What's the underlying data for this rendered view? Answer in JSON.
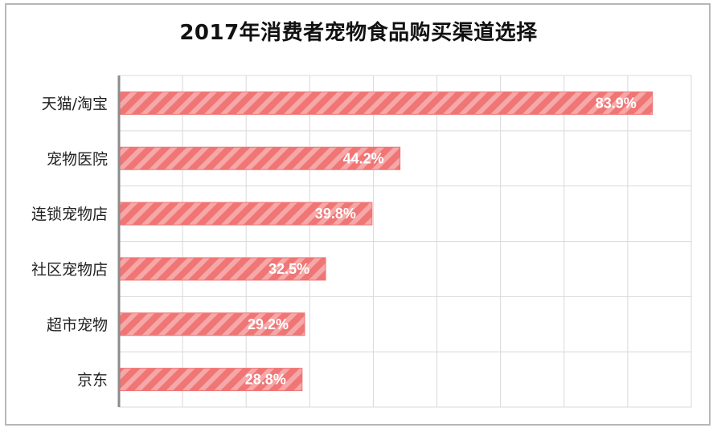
{
  "chart_data": {
    "type": "bar",
    "orientation": "horizontal",
    "title": "2017年消费者宠物食品购买渠道选择",
    "categories": [
      "天猫/淘宝",
      "宠物医院",
      "连锁宠物店",
      "社区宠物店",
      "超市宠物",
      "京东"
    ],
    "values": [
      83.9,
      44.2,
      39.8,
      32.5,
      29.2,
      28.8
    ],
    "value_labels": [
      "83.9%",
      "44.2%",
      "39.8%",
      "32.5%",
      "29.2%",
      "28.8%"
    ],
    "xlim": [
      0,
      90
    ],
    "grid": true,
    "legend": "none",
    "bar_color": "#f07575",
    "bar_stripe_color": "#f6a7a7",
    "grid_color": "#d9d9d9"
  }
}
